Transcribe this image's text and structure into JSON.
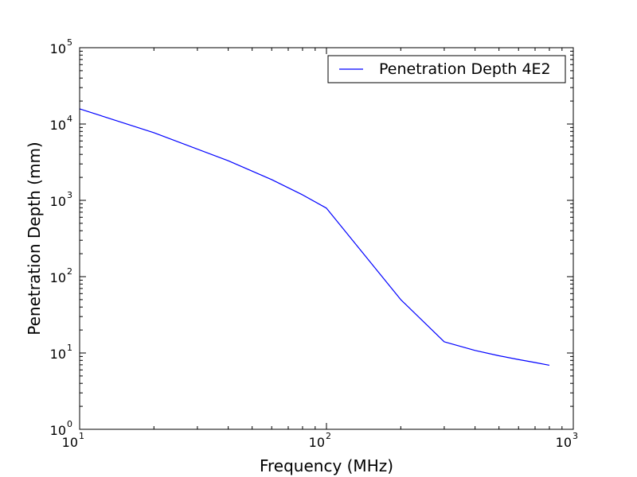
{
  "chart_data": {
    "type": "line",
    "title": "",
    "xlabel": "Frequency (MHz)",
    "ylabel": "Penetration Depth (mm)",
    "xscale": "log",
    "yscale": "log",
    "xlim": [
      10,
      1000
    ],
    "ylim": [
      1,
      100000
    ],
    "grid": false,
    "legend_position": "top-right",
    "x_ticks": [
      {
        "value": 10,
        "base": "10",
        "exp": "1"
      },
      {
        "value": 100,
        "base": "10",
        "exp": "2"
      },
      {
        "value": 1000,
        "base": "10",
        "exp": "3"
      }
    ],
    "y_ticks": [
      {
        "value": 1,
        "base": "10",
        "exp": "0"
      },
      {
        "value": 10,
        "base": "10",
        "exp": "1"
      },
      {
        "value": 100,
        "base": "10",
        "exp": "2"
      },
      {
        "value": 1000,
        "base": "10",
        "exp": "3"
      },
      {
        "value": 10000,
        "base": "10",
        "exp": "4"
      },
      {
        "value": 100000,
        "base": "10",
        "exp": "5"
      }
    ],
    "series": [
      {
        "name": "Penetration Depth 4E2",
        "color": "#0000ff",
        "x": [
          10,
          20,
          40,
          60,
          80,
          100,
          200,
          300,
          400,
          500,
          600,
          700,
          800
        ],
        "y": [
          15800,
          7700,
          3300,
          1870,
          1180,
          790,
          50,
          14,
          10.8,
          9.2,
          8.2,
          7.5,
          6.9
        ]
      }
    ]
  }
}
